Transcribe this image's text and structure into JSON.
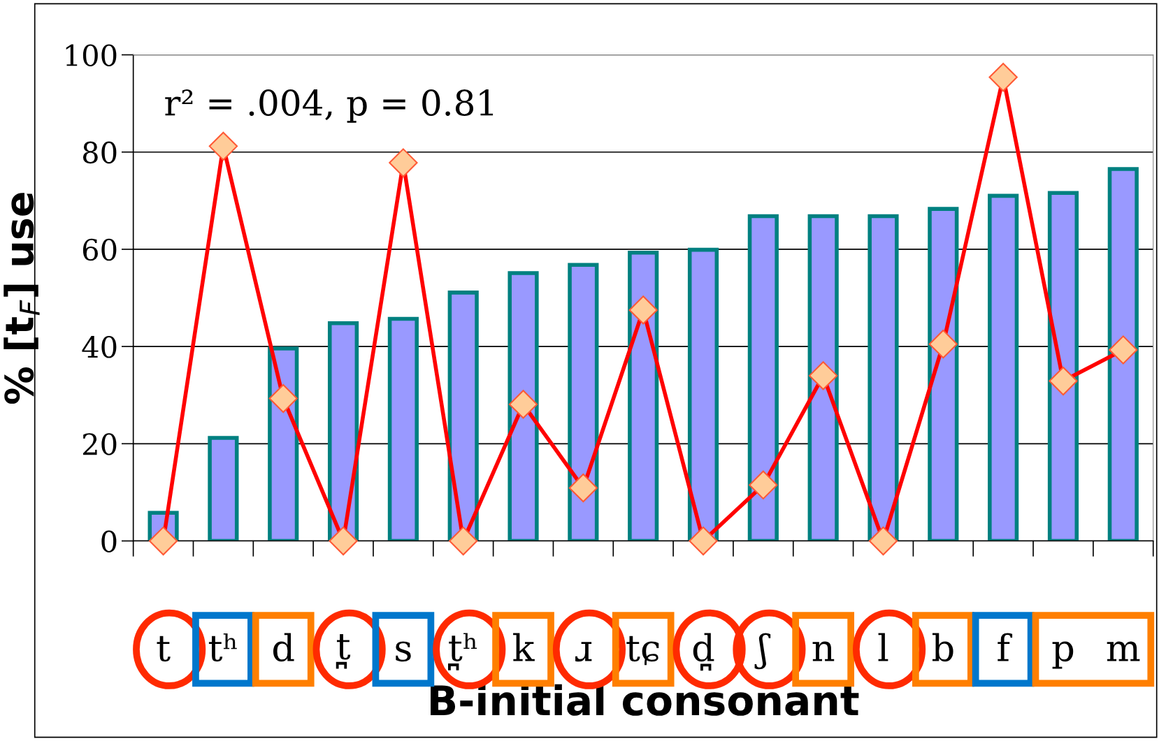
{
  "chart_data": {
    "type": "bar",
    "xlabel": "B-initial consonant",
    "ylabel": "% [t$_{F}$] use",
    "categories": [
      "t",
      "tʰ",
      "d",
      "t̪",
      "s",
      "t̪ʰ",
      "k",
      "ɹ",
      "tɕ",
      "d̪",
      "ʃ",
      "n",
      "l",
      "b",
      "f",
      "p",
      "m"
    ],
    "series": [
      {
        "color": "#9999ff",
        "values": [
          5.8,
          21.2,
          39.6,
          44.8,
          45.7,
          51.1,
          55.1,
          56.8,
          59.3,
          59.9,
          66.8,
          66.8,
          66.8,
          68.3,
          71.0,
          71.6,
          76.5
        ]
      },
      {
        "type": "line",
        "color": "#ff0000",
        "values": [
          0,
          81.2,
          29.3,
          0,
          77.8,
          0,
          28.1,
          10.9,
          47.5,
          0,
          11.5,
          34.0,
          0,
          40.5,
          95.4,
          32.9,
          39.3
        ]
      }
    ],
    "ylim": [
      0,
      100
    ],
    "yticks": [
      0,
      20,
      40,
      60,
      80,
      100
    ],
    "grid": "y",
    "marker": "diamond",
    "line_style": "solid",
    "annotations": [
      {
        "text": "r² = .004, p = 0.81"
      }
    ]
  }
}
